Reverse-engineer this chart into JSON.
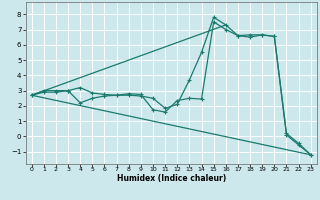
{
  "xlabel": "Humidex (Indice chaleur)",
  "bg_color": "#cde8ec",
  "grid_color": "#ffffff",
  "line_color": "#1a7a6e",
  "xlim": [
    -0.5,
    23.5
  ],
  "ylim": [
    -1.8,
    8.8
  ],
  "xticks": [
    0,
    1,
    2,
    3,
    4,
    5,
    6,
    7,
    8,
    9,
    10,
    11,
    12,
    13,
    14,
    15,
    16,
    17,
    18,
    19,
    20,
    21,
    22,
    23
  ],
  "yticks": [
    -1,
    0,
    1,
    2,
    3,
    4,
    5,
    6,
    7,
    8
  ],
  "line1_x": [
    0,
    1,
    2,
    3,
    4,
    5,
    6,
    7,
    8,
    9,
    10,
    11,
    12,
    13,
    14,
    15,
    16,
    17,
    18,
    19,
    20,
    21,
    22,
    23
  ],
  "line1_y": [
    2.7,
    3.0,
    3.0,
    3.0,
    3.2,
    2.85,
    2.75,
    2.7,
    2.7,
    2.65,
    2.5,
    1.85,
    2.1,
    3.7,
    5.5,
    7.8,
    7.3,
    6.6,
    6.5,
    6.65,
    6.55,
    0.1,
    -0.55,
    -1.2
  ],
  "line2_x": [
    0,
    1,
    2,
    3,
    4,
    5,
    6,
    7,
    8,
    9,
    10,
    11,
    12,
    13,
    14,
    15,
    16,
    17,
    18,
    19,
    20,
    21,
    22,
    23
  ],
  "line2_y": [
    2.7,
    2.9,
    2.9,
    3.0,
    2.2,
    2.5,
    2.65,
    2.7,
    2.8,
    2.75,
    1.75,
    1.6,
    2.35,
    2.5,
    2.45,
    7.5,
    7.0,
    6.6,
    6.65,
    6.65,
    6.55,
    0.2,
    -0.45,
    -1.2
  ],
  "line3_x": [
    0,
    23
  ],
  "line3_y": [
    2.7,
    -1.2
  ],
  "line4_x": [
    0,
    16
  ],
  "line4_y": [
    2.7,
    7.3
  ]
}
